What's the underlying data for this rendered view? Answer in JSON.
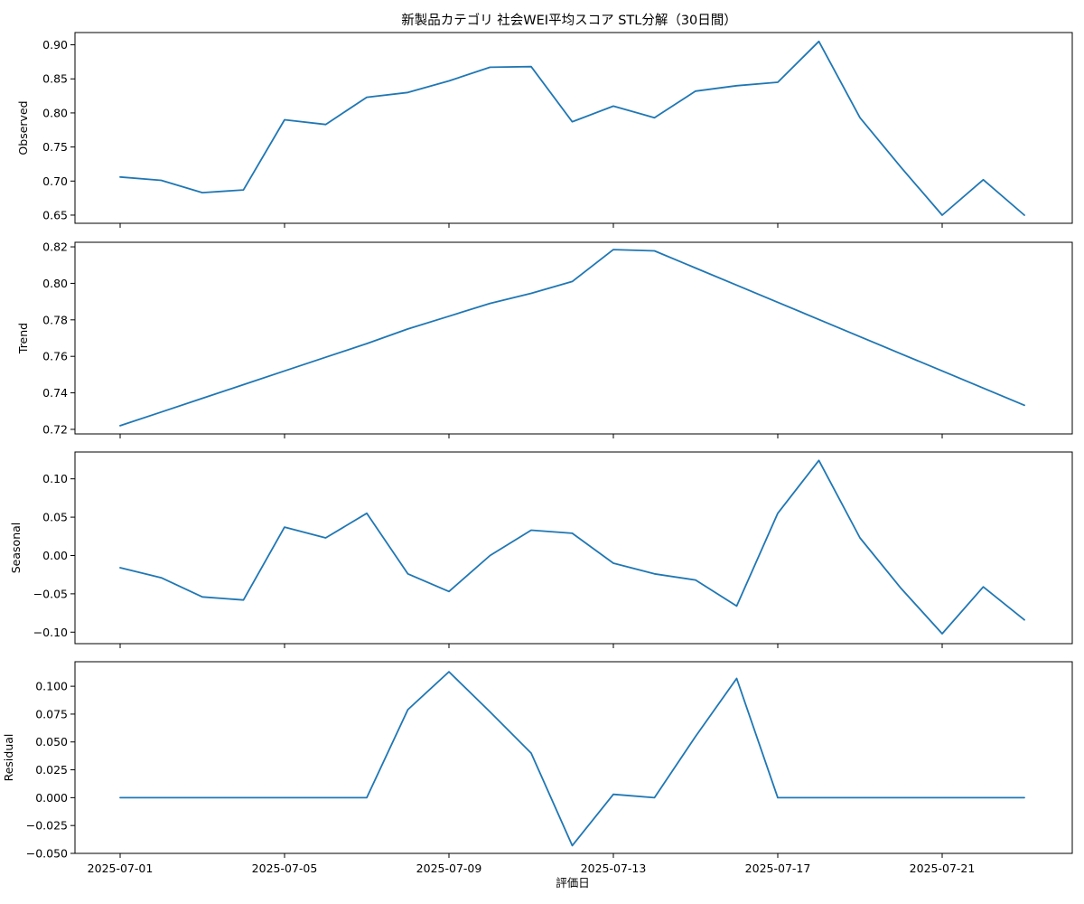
{
  "chart_data": [
    {
      "type": "line",
      "title": "新製品カテゴリ 社会WEI平均スコア STL分解（30日間）",
      "ylabel": "Observed",
      "xlabel": "",
      "ylim": [
        0.638,
        0.918
      ],
      "yticks": [
        0.65,
        0.7,
        0.75,
        0.8,
        0.85,
        0.9
      ],
      "ytick_labels": [
        "0.65",
        "0.70",
        "0.75",
        "0.80",
        "0.85",
        "0.90"
      ],
      "x": [
        "2025-07-01",
        "2025-07-02",
        "2025-07-03",
        "2025-07-04",
        "2025-07-05",
        "2025-07-06",
        "2025-07-07",
        "2025-07-08",
        "2025-07-09",
        "2025-07-10",
        "2025-07-11",
        "2025-07-12",
        "2025-07-13",
        "2025-07-14",
        "2025-07-15",
        "2025-07-16",
        "2025-07-17",
        "2025-07-18",
        "2025-07-19",
        "2025-07-20",
        "2025-07-21",
        "2025-07-22",
        "2025-07-23"
      ],
      "series": [
        {
          "values": [
            0.706,
            0.701,
            0.683,
            0.687,
            0.79,
            0.783,
            0.823,
            0.83,
            0.847,
            0.867,
            0.868,
            0.787,
            0.81,
            0.793,
            0.832,
            0.84,
            0.845,
            0.905,
            0.793,
            0.72,
            0.65,
            0.702,
            0.65
          ]
        }
      ],
      "grid": false
    },
    {
      "type": "line",
      "ylabel": "Trend",
      "xlabel": "",
      "ylim": [
        0.7175,
        0.8225
      ],
      "yticks": [
        0.72,
        0.74,
        0.76,
        0.78,
        0.8,
        0.82
      ],
      "ytick_labels": [
        "0.72",
        "0.74",
        "0.76",
        "0.78",
        "0.80",
        "0.82"
      ],
      "x": [
        "2025-07-01",
        "2025-07-02",
        "2025-07-03",
        "2025-07-04",
        "2025-07-05",
        "2025-07-06",
        "2025-07-07",
        "2025-07-08",
        "2025-07-09",
        "2025-07-10",
        "2025-07-11",
        "2025-07-12",
        "2025-07-13",
        "2025-07-14",
        "2025-07-15",
        "2025-07-16",
        "2025-07-17",
        "2025-07-18",
        "2025-07-19",
        "2025-07-20",
        "2025-07-21",
        "2025-07-22",
        "2025-07-23"
      ],
      "series": [
        {
          "values": [
            0.722,
            0.7295,
            0.737,
            0.7445,
            0.752,
            0.7595,
            0.767,
            0.775,
            0.782,
            0.789,
            0.7945,
            0.801,
            0.8185,
            0.8178,
            0.8084,
            0.799,
            0.7896,
            0.7802,
            0.7708,
            0.7614,
            0.752,
            0.7426,
            0.7332
          ]
        }
      ],
      "grid": false
    },
    {
      "type": "line",
      "ylabel": "Seasonal",
      "xlabel": "",
      "ylim": [
        -0.115,
        0.135
      ],
      "yticks": [
        -0.1,
        -0.05,
        0.0,
        0.05,
        0.1
      ],
      "ytick_labels": [
        "−0.10",
        "−0.05",
        "0.00",
        "0.05",
        "0.10"
      ],
      "x": [
        "2025-07-01",
        "2025-07-02",
        "2025-07-03",
        "2025-07-04",
        "2025-07-05",
        "2025-07-06",
        "2025-07-07",
        "2025-07-08",
        "2025-07-09",
        "2025-07-10",
        "2025-07-11",
        "2025-07-12",
        "2025-07-13",
        "2025-07-14",
        "2025-07-15",
        "2025-07-16",
        "2025-07-17",
        "2025-07-18",
        "2025-07-19",
        "2025-07-20",
        "2025-07-21",
        "2025-07-22",
        "2025-07-23"
      ],
      "series": [
        {
          "values": [
            -0.016,
            -0.029,
            -0.054,
            -0.058,
            0.037,
            0.023,
            0.055,
            -0.024,
            -0.047,
            0.0,
            0.033,
            0.029,
            -0.01,
            -0.024,
            -0.032,
            -0.066,
            0.055,
            0.124,
            0.023,
            -0.043,
            -0.102,
            -0.041,
            -0.084
          ]
        }
      ],
      "grid": false
    },
    {
      "type": "line",
      "ylabel": "Residual",
      "xlabel": "評価日",
      "ylim": [
        -0.05,
        0.122
      ],
      "yticks": [
        -0.05,
        -0.025,
        0.0,
        0.025,
        0.05,
        0.075,
        0.1
      ],
      "ytick_labels": [
        "−0.050",
        "−0.025",
        "0.000",
        "0.025",
        "0.050",
        "0.075",
        "0.100"
      ],
      "xticks": [
        "2025-07-01",
        "2025-07-05",
        "2025-07-09",
        "2025-07-13",
        "2025-07-17",
        "2025-07-21"
      ],
      "x": [
        "2025-07-01",
        "2025-07-02",
        "2025-07-03",
        "2025-07-04",
        "2025-07-05",
        "2025-07-06",
        "2025-07-07",
        "2025-07-08",
        "2025-07-09",
        "2025-07-10",
        "2025-07-11",
        "2025-07-12",
        "2025-07-13",
        "2025-07-14",
        "2025-07-15",
        "2025-07-16",
        "2025-07-17",
        "2025-07-18",
        "2025-07-19",
        "2025-07-20",
        "2025-07-21",
        "2025-07-22",
        "2025-07-23"
      ],
      "series": [
        {
          "values": [
            0.0,
            0.0,
            0.0,
            0.0,
            0.0,
            0.0,
            0.0,
            0.079,
            0.113,
            0.077,
            0.04,
            -0.043,
            0.003,
            0.0,
            0.055,
            0.107,
            0.0,
            0.0,
            0.0,
            0.0,
            0.0,
            0.0,
            0.0
          ]
        }
      ],
      "grid": false
    }
  ]
}
